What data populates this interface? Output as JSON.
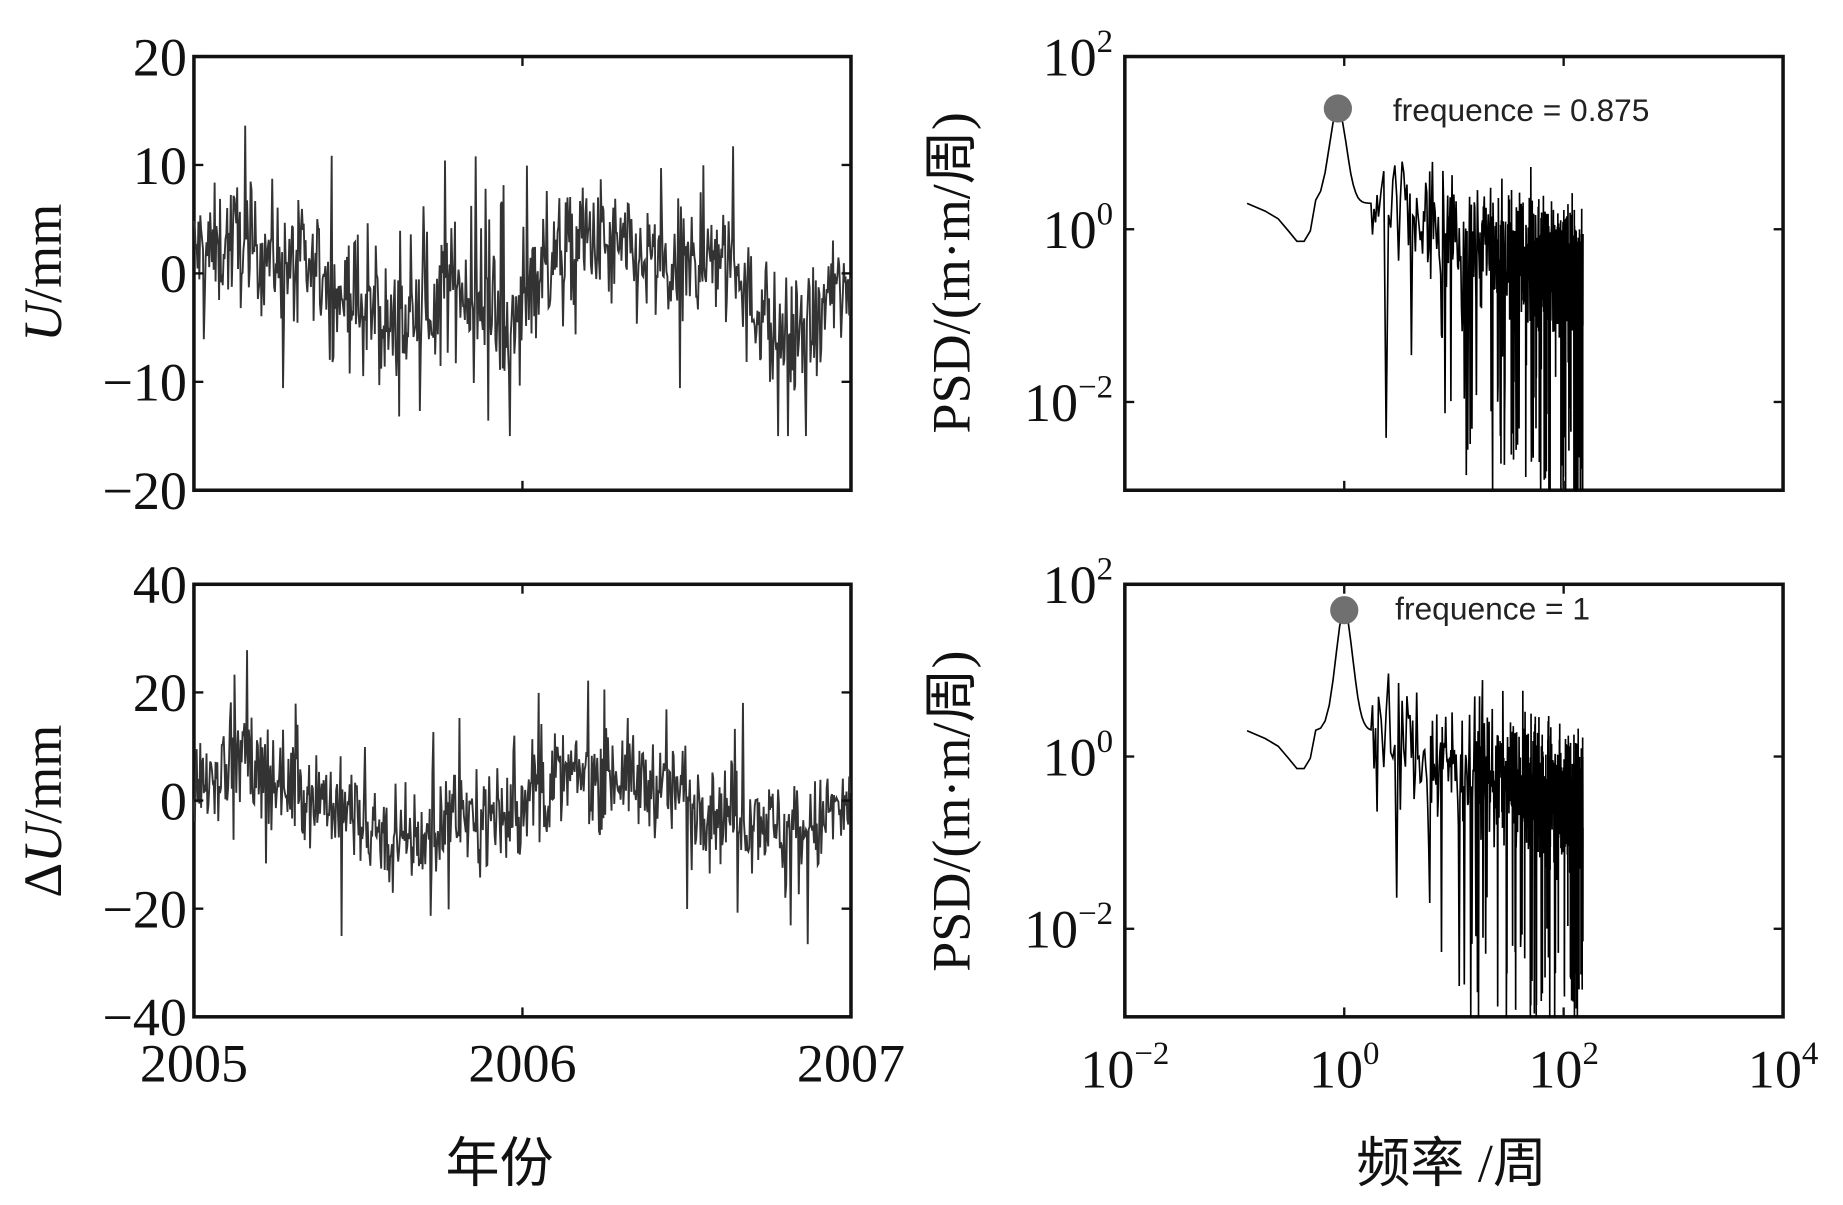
{
  "chart_data": [
    {
      "type": "line",
      "panel": "top-left",
      "ylabel_italic": "U",
      "ylabel_unit": "/mm",
      "xlim": [
        2005,
        2007
      ],
      "ylim": [
        -20,
        20
      ],
      "yticks": [
        "20",
        "10",
        "0",
        "−10",
        "−20"
      ],
      "ytick_values": [
        20,
        10,
        0,
        -10,
        -20
      ],
      "xtick_values": [
        2005,
        2006,
        2007
      ],
      "monthly_mean": [
        2,
        3,
        2,
        1,
        0,
        -2,
        -4,
        -5,
        -3,
        -1,
        -3,
        -5,
        0,
        2,
        3,
        2,
        1,
        0,
        1,
        2,
        -3,
        -6,
        -5,
        -2
      ],
      "noise_amplitude": 5,
      "color": "#333333"
    },
    {
      "type": "line",
      "panel": "bottom-left",
      "ylabel_prefix": "Δ",
      "ylabel_italic": "U",
      "ylabel_unit": "/mm",
      "xlim": [
        2005,
        2007
      ],
      "ylim": [
        -40,
        40
      ],
      "yticks": [
        "40",
        "20",
        "0",
        "−20",
        "−40"
      ],
      "ytick_values": [
        40,
        20,
        0,
        -20,
        -40
      ],
      "xticks": [
        "2005",
        "2006",
        "2007"
      ],
      "xtick_values": [
        2005,
        2006,
        2007
      ],
      "xlabel": "年份",
      "monthly_mean": [
        5,
        8,
        5,
        3,
        1,
        -2,
        -5,
        -8,
        -7,
        -2,
        -3,
        -3,
        2,
        4,
        5,
        5,
        3,
        2,
        0,
        -2,
        -3,
        -5,
        -5,
        -2
      ],
      "noise_amplitude": 8,
      "color": "#333333"
    },
    {
      "type": "line",
      "panel": "top-right",
      "ylabel": "PSD/(m·m/周)",
      "xscale": "log",
      "yscale": "log",
      "xlim": [
        0.01,
        10000
      ],
      "ylim": [
        0.00095,
        100
      ],
      "ytick_exponents": [
        "2",
        "0",
        "−2"
      ],
      "ytick_values": [
        100,
        1,
        0.01
      ],
      "xtick_values": [
        1,
        100
      ],
      "freq_range": [
        0.13,
        150
      ],
      "peak": {
        "frequency": 0.875,
        "psd": 25
      },
      "annotation": "frequence = 0.875",
      "color": "#000000",
      "marker_color": "#707070"
    },
    {
      "type": "line",
      "panel": "bottom-right",
      "ylabel": "PSD/(m·m/周)",
      "xscale": "log",
      "yscale": "log",
      "xlim": [
        0.01,
        10000
      ],
      "ylim": [
        0.00095,
        100
      ],
      "ytick_exponents": [
        "2",
        "0",
        "−2"
      ],
      "ytick_values": [
        100,
        1,
        0.01
      ],
      "xtick_base": "10",
      "xtick_exponents": [
        "−2",
        "0",
        "2",
        "4"
      ],
      "xtick_values": [
        0.01,
        1,
        100,
        10000
      ],
      "xlabel": "频率 /周",
      "freq_range": [
        0.13,
        150
      ],
      "peak": {
        "frequency": 1,
        "psd": 50
      },
      "annotation": "frequence = 1",
      "color": "#000000",
      "marker_color": "#707070"
    }
  ]
}
